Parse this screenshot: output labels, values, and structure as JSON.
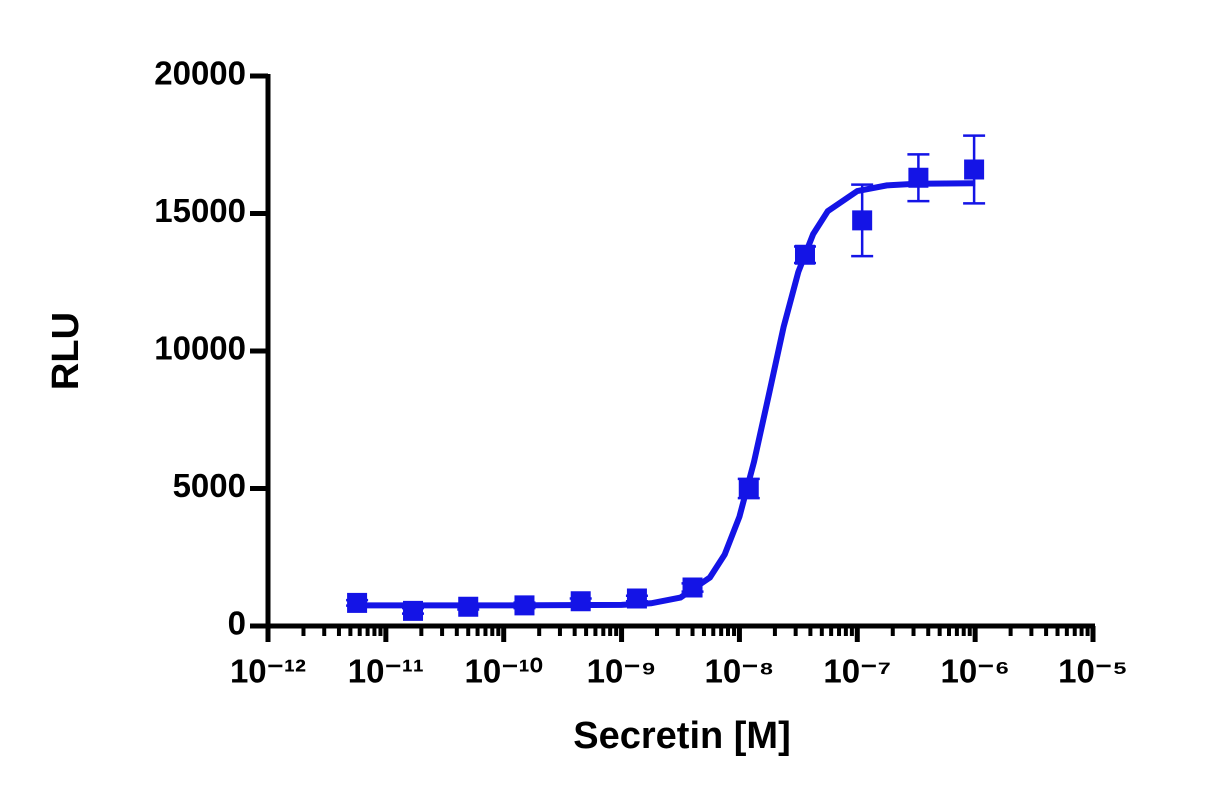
{
  "chart_data": {
    "type": "dose-response",
    "x_label": "Secretin [M]",
    "y_label": "RLU",
    "xscale": "log",
    "xlim": [
      1e-12,
      1e-05
    ],
    "xticks": [
      {
        "value": 1e-12,
        "label": "10⁻¹²"
      },
      {
        "value": 1e-11,
        "label": "10⁻¹¹"
      },
      {
        "value": 1e-10,
        "label": "10⁻¹⁰"
      },
      {
        "value": 1e-09,
        "label": "10⁻⁹"
      },
      {
        "value": 1e-08,
        "label": "10⁻⁸"
      },
      {
        "value": 1e-07,
        "label": "10⁻⁷"
      },
      {
        "value": 1e-06,
        "label": "10⁻⁶"
      },
      {
        "value": 1e-05,
        "label": "10⁻⁵"
      }
    ],
    "xminor_ticks": true,
    "ylim": [
      0,
      20000
    ],
    "yticks": [
      0,
      5000,
      10000,
      15000,
      20000
    ],
    "grid": false,
    "color": "#1414e6",
    "points": {
      "x": [
        5.7e-12,
        1.7e-11,
        5e-11,
        1.5e-10,
        4.5e-10,
        1.35e-09,
        4e-09,
        1.2e-08,
        3.6e-08,
        1.1e-07,
        3.3e-07,
        9.8e-07
      ],
      "values": [
        840,
        550,
        700,
        750,
        900,
        1000,
        1400,
        5000,
        13500,
        14750,
        16300,
        16600
      ],
      "errors": [
        100,
        100,
        100,
        100,
        100,
        100,
        150,
        350,
        300,
        1300,
        850,
        1230
      ]
    },
    "fit": {
      "x": [
        5.62e-12,
        1e-10,
        1e-09,
        1.78e-09,
        3.16e-09,
        5.62e-09,
        7.5e-09,
        1e-08,
        1.33e-08,
        1.78e-08,
        2.37e-08,
        3.16e-08,
        4.22e-08,
        5.62e-08,
        1e-07,
        1.78e-07,
        3.16e-07,
        1e-06
      ],
      "values": [
        750,
        750,
        770,
        827,
        1034,
        1766,
        2602,
        3975,
        5971,
        8425,
        10875,
        12875,
        14250,
        15085,
        15817,
        16023,
        16080,
        16100
      ]
    }
  }
}
